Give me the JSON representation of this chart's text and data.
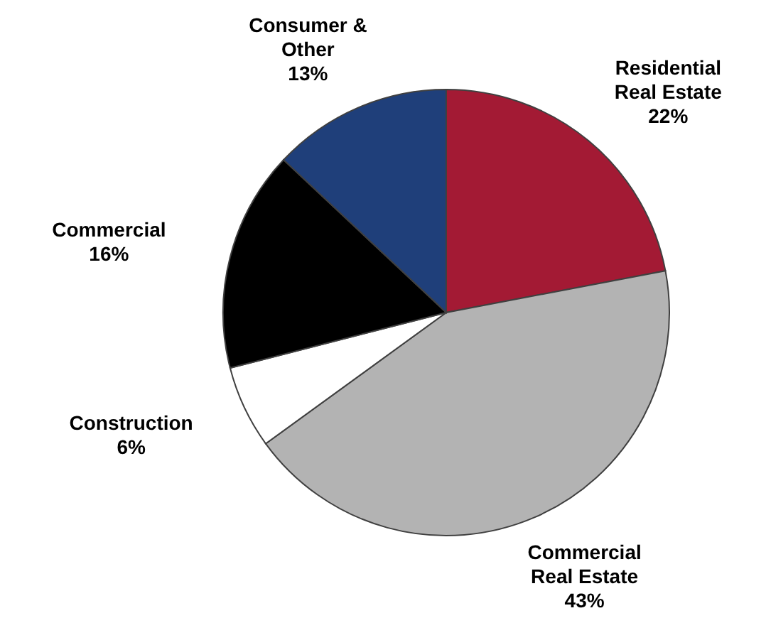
{
  "chart_data": {
    "type": "pie",
    "categories": [
      "Residential Real Estate",
      "Commercial Real Estate",
      "Construction",
      "Commercial",
      "Consumer & Other"
    ],
    "values": [
      22,
      43,
      6,
      16,
      13
    ],
    "value_labels": [
      "22%",
      "43%",
      "6%",
      "16%",
      "13%"
    ],
    "colors": [
      "#a31a34",
      "#b3b3b3",
      "#ffffff",
      "#000000",
      "#1f3f7a"
    ]
  }
}
